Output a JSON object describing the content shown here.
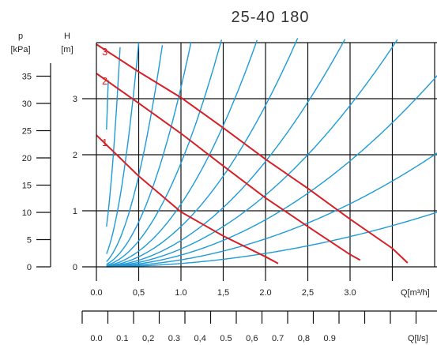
{
  "chart_data": {
    "type": "line",
    "title": "25-40 180",
    "pressure_axis": {
      "unit_line1": "p",
      "unit_line2": "[kPa]",
      "ticks": [
        "0",
        "5",
        "10",
        "15",
        "20",
        "25",
        "30",
        "35"
      ]
    },
    "head_axis": {
      "unit_line1": "H",
      "unit_line2": "[m]",
      "ticks": [
        "0",
        "1",
        "2",
        "3"
      ],
      "ylim": [
        0,
        4
      ]
    },
    "flow_axis": {
      "label": "Q[m³/h]",
      "ticks": [
        "0.0",
        "0,5",
        "1.0",
        "1,5",
        "2.0",
        "2,5",
        "3.0"
      ],
      "xlim": [
        0,
        4
      ]
    },
    "flow_ls_axis": {
      "label": "Q[l/s]",
      "ticks": [
        "0.0",
        "0.1",
        "0,2",
        "0.3",
        "0,4",
        "0.5",
        "0,6",
        "0.7",
        "0,8",
        "0.9"
      ]
    },
    "series": [
      {
        "name": "1",
        "color": "#d62027",
        "x": [
          0,
          0.5,
          1.0,
          1.5,
          2.0,
          2.15
        ],
        "y": [
          2.35,
          1.62,
          0.98,
          0.55,
          0.18,
          0.06
        ]
      },
      {
        "name": "2",
        "color": "#d62027",
        "x": [
          0,
          0.5,
          1.0,
          1.5,
          2.0,
          2.5,
          3.0,
          3.12
        ],
        "y": [
          3.45,
          2.92,
          2.38,
          1.8,
          1.23,
          0.72,
          0.22,
          0.12
        ]
      },
      {
        "name": "3",
        "color": "#d62027",
        "x": [
          0,
          0.5,
          1.0,
          1.5,
          2.0,
          2.5,
          3.0,
          3.5,
          3.68
        ],
        "y": [
          3.97,
          3.48,
          3.02,
          2.48,
          1.92,
          1.4,
          0.85,
          0.33,
          0.07
        ]
      }
    ],
    "system_curves": {
      "color": "#1e9bd7",
      "coefficients": [
        170,
        50,
        16,
        6.5,
        3.2,
        1.85,
        1.12,
        0.72,
        0.47,
        0.32,
        0.21,
        0.125,
        0.06
      ]
    },
    "grid": true
  }
}
